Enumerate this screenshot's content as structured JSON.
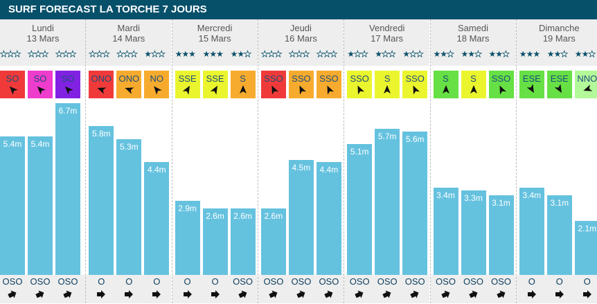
{
  "title": "SURF FORECAST LA TORCHE 7 JOURS",
  "colors": {
    "header": "#07506a",
    "bar": "#65c2df",
    "star": "#0b5068"
  },
  "wind_colors": {
    "red": "#f03a3a",
    "pink": "#ee3ccc",
    "purple": "#8122e3",
    "orange": "#f7ab2e",
    "yellow": "#eaf52e",
    "green": "#66e044",
    "lightgreen": "#b3f99a"
  },
  "days": [
    {
      "name": "Lundi",
      "date": "13 Mars",
      "slots": [
        {
          "stars": 0,
          "wind": "SO",
          "wind_color": "red",
          "height": "5.4m",
          "height_value": 5.4,
          "swell_dir": "OSO"
        },
        {
          "stars": 0,
          "wind": "SO",
          "wind_color": "pink",
          "height": "5.4m",
          "height_value": 5.4,
          "swell_dir": "OSO"
        },
        {
          "stars": 0,
          "wind": "SO",
          "wind_color": "purple",
          "height": "6.7m",
          "height_value": 6.7,
          "swell_dir": "OSO"
        }
      ]
    },
    {
      "name": "Mardi",
      "date": "14 Mars",
      "slots": [
        {
          "stars": 0,
          "wind": "ONO",
          "wind_color": "red",
          "height": "5.8m",
          "height_value": 5.8,
          "swell_dir": "O"
        },
        {
          "stars": 0,
          "wind": "ONO",
          "wind_color": "orange",
          "height": "5.3m",
          "height_value": 5.3,
          "swell_dir": "O"
        },
        {
          "stars": 1,
          "wind": "NO",
          "wind_color": "orange",
          "height": "4.4m",
          "height_value": 4.4,
          "swell_dir": "O"
        }
      ]
    },
    {
      "name": "Mercredi",
      "date": "15 Mars",
      "slots": [
        {
          "stars": 3,
          "wind": "SSE",
          "wind_color": "yellow",
          "height": "2.9m",
          "height_value": 2.9,
          "swell_dir": "O"
        },
        {
          "stars": 3,
          "wind": "SSE",
          "wind_color": "yellow",
          "height": "2.6m",
          "height_value": 2.6,
          "swell_dir": "O"
        },
        {
          "stars": 2,
          "wind": "S",
          "wind_color": "orange",
          "height": "2.6m",
          "height_value": 2.6,
          "swell_dir": "OSO"
        }
      ]
    },
    {
      "name": "Jeudi",
      "date": "16 Mars",
      "slots": [
        {
          "stars": 0,
          "wind": "SSO",
          "wind_color": "red",
          "height": "2.6m",
          "height_value": 2.6,
          "swell_dir": "OSO"
        },
        {
          "stars": 0,
          "wind": "SSO",
          "wind_color": "orange",
          "height": "4.5m",
          "height_value": 4.5,
          "swell_dir": "OSO"
        },
        {
          "stars": 0,
          "wind": "SSO",
          "wind_color": "orange",
          "height": "4.4m",
          "height_value": 4.4,
          "swell_dir": "OSO"
        }
      ]
    },
    {
      "name": "Vendredi",
      "date": "17 Mars",
      "slots": [
        {
          "stars": 1,
          "wind": "SSO",
          "wind_color": "yellow",
          "height": "5.1m",
          "height_value": 5.1,
          "swell_dir": "OSO"
        },
        {
          "stars": 1,
          "wind": "S",
          "wind_color": "yellow",
          "height": "5.7m",
          "height_value": 5.7,
          "swell_dir": "OSO"
        },
        {
          "stars": 1,
          "wind": "SSO",
          "wind_color": "yellow",
          "height": "5.6m",
          "height_value": 5.6,
          "swell_dir": "OSO"
        }
      ]
    },
    {
      "name": "Samedi",
      "date": "18 Mars",
      "slots": [
        {
          "stars": 2,
          "wind": "S",
          "wind_color": "green",
          "height": "3.4m",
          "height_value": 3.4,
          "swell_dir": "OSO"
        },
        {
          "stars": 2,
          "wind": "S",
          "wind_color": "yellow",
          "height": "3.3m",
          "height_value": 3.3,
          "swell_dir": "OSO"
        },
        {
          "stars": 2,
          "wind": "SSO",
          "wind_color": "green",
          "height": "3.1m",
          "height_value": 3.1,
          "swell_dir": "OSO"
        }
      ]
    },
    {
      "name": "Dimanche",
      "date": "19 Mars",
      "slots": [
        {
          "stars": 3,
          "wind": "ESE",
          "wind_color": "green",
          "height": "3.4m",
          "height_value": 3.4,
          "swell_dir": "O"
        },
        {
          "stars": 2,
          "wind": "ESE",
          "wind_color": "green",
          "height": "3.1m",
          "height_value": 3.1,
          "swell_dir": "O"
        },
        {
          "stars": 2,
          "wind": "NNO",
          "wind_color": "lightgreen",
          "height": "2.1m",
          "height_value": 2.1,
          "swell_dir": "O"
        }
      ]
    }
  ]
}
